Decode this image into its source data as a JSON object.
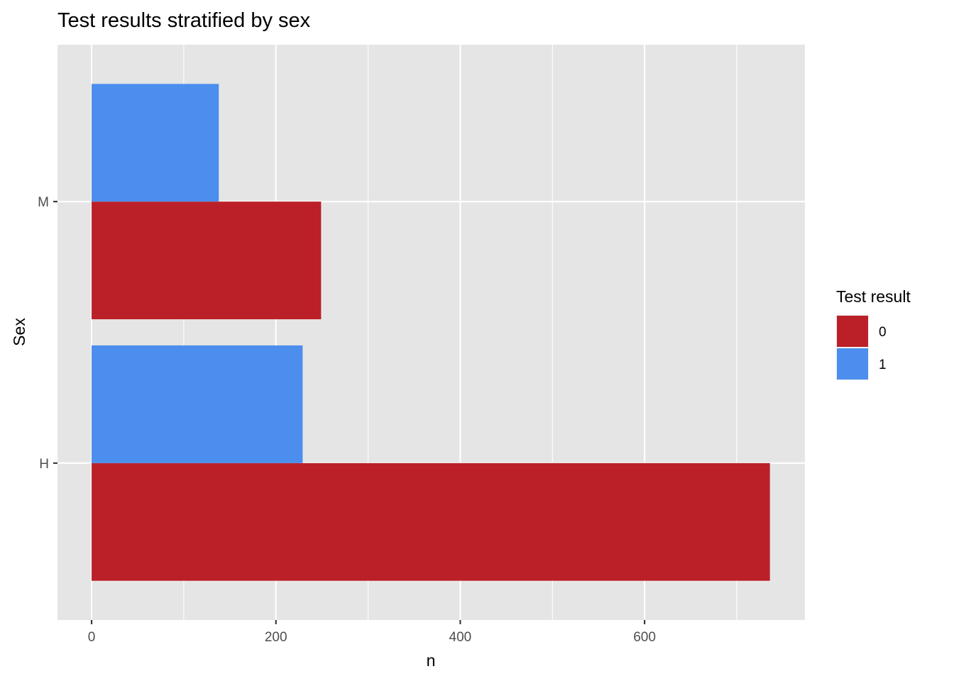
{
  "chart_data": {
    "type": "bar",
    "orientation": "horizontal",
    "title": "Test results stratified by sex",
    "xlabel": "n",
    "ylabel": "Sex",
    "categories": [
      "H",
      "M"
    ],
    "series": [
      {
        "name": "0",
        "color": "#bb2028",
        "values": [
          736,
          249
        ]
      },
      {
        "name": "1",
        "color": "#4b8eed",
        "values": [
          229,
          138
        ]
      }
    ],
    "xlim": [
      -37,
      774
    ],
    "xticks": [
      0,
      200,
      400,
      600
    ],
    "xticks_minor": [
      100,
      300,
      500,
      700
    ],
    "legend": {
      "title": "Test result",
      "position": "right"
    },
    "grid": true,
    "panel_color": "#e5e5e5"
  }
}
